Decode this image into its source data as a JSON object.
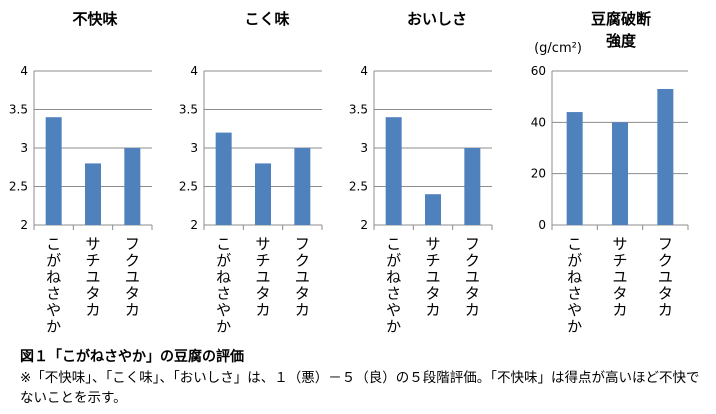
{
  "chart_data": [
    {
      "type": "bar",
      "title": "不快味",
      "categories": [
        "こがねさやか",
        "サチユタカ",
        "フクユタカ"
      ],
      "values": [
        3.4,
        2.8,
        3.0
      ],
      "ylim": [
        2,
        4
      ],
      "yticks": [
        "2",
        "2.5",
        "3",
        "3.5",
        "4"
      ],
      "ytick_values": [
        2,
        2.5,
        3,
        3.5,
        4
      ],
      "ylabel": "",
      "grid": true,
      "bar_color": "#4f81bd"
    },
    {
      "type": "bar",
      "title": "こく味",
      "categories": [
        "こがねさやか",
        "サチユタカ",
        "フクユタカ"
      ],
      "values": [
        3.2,
        2.8,
        3.0
      ],
      "ylim": [
        2,
        4
      ],
      "yticks": [
        "2",
        "2.5",
        "3",
        "3.5",
        "4"
      ],
      "ytick_values": [
        2,
        2.5,
        3,
        3.5,
        4
      ],
      "ylabel": "",
      "grid": true,
      "bar_color": "#4f81bd"
    },
    {
      "type": "bar",
      "title": "おいしさ",
      "categories": [
        "こがねさやか",
        "サチユタカ",
        "フクユタカ"
      ],
      "values": [
        3.4,
        2.4,
        3.0
      ],
      "ylim": [
        2,
        4
      ],
      "yticks": [
        "2",
        "2.5",
        "3",
        "3.5",
        "4"
      ],
      "ytick_values": [
        2,
        2.5,
        3,
        3.5,
        4
      ],
      "ylabel": "",
      "grid": true,
      "bar_color": "#4f81bd"
    },
    {
      "type": "bar",
      "title_lines": [
        "豆腐破断",
        "強度"
      ],
      "categories": [
        "こがねさやか",
        "サチユタカ",
        "フクユタカ"
      ],
      "values": [
        44,
        40,
        53
      ],
      "ylim": [
        0,
        60
      ],
      "yticks": [
        "0",
        "20",
        "40",
        "60"
      ],
      "ytick_values": [
        0,
        20,
        40,
        60
      ],
      "ylabel": "(g/cm²)",
      "grid": true,
      "bar_color": "#4f81bd"
    }
  ],
  "caption": {
    "title": "図１「こがねさやか」の豆腐の評価",
    "note": "※「不快味」、「こく味」、「おいしさ」は、１（悪）－５（良）の５段階評価。「不快味」は得点が高いほど不快でないことを示す。"
  }
}
